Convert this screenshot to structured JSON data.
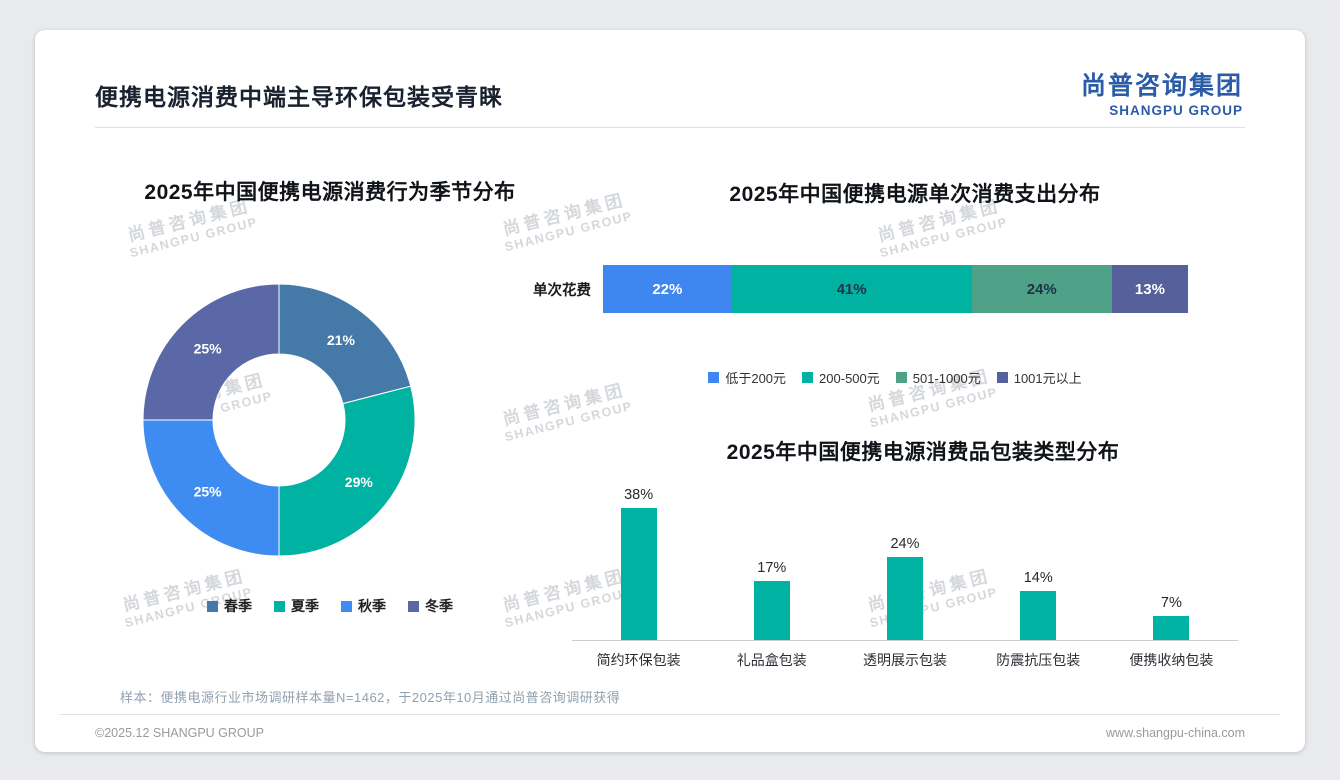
{
  "header": {
    "title": "便携电源消费中端主导环保包装受青睐",
    "logo_cn": "尚普咨询集团",
    "logo_en": "SHANGPU GROUP"
  },
  "watermark": {
    "cn": "尚普咨询集团",
    "en": "SHANGPU GROUP"
  },
  "footnote": "样本：便携电源行业市场调研样本量N=1462，于2025年10月通过尚普咨询调研获得",
  "footer": {
    "left": "©2025.12 SHANGPU GROUP",
    "right": "www.shangpu-china.com"
  },
  "chart_data": [
    {
      "id": "season-donut",
      "type": "pie",
      "subtype": "donut",
      "title": "2025年中国便携电源消费行为季节分布",
      "categories": [
        "春季",
        "夏季",
        "秋季",
        "冬季"
      ],
      "values": [
        21,
        29,
        25,
        25
      ],
      "unit": "%",
      "colors": [
        "#4579a8",
        "#00b2a2",
        "#3e8cf2",
        "#5a68a8"
      ],
      "legend_position": "bottom",
      "start_angle_deg": -90,
      "direction": "clockwise"
    },
    {
      "id": "spend-stacked-bar",
      "type": "bar",
      "subtype": "stacked-horizontal",
      "title": "2025年中国便携电源单次消费支出分布",
      "row_label": "单次花费",
      "categories": [
        "低于200元",
        "200-500元",
        "501-1000元",
        "1001元以上"
      ],
      "values": [
        22,
        41,
        24,
        13
      ],
      "unit": "%",
      "colors": [
        "#3e86f0",
        "#00b2a2",
        "#4fa188",
        "#56619c"
      ],
      "value_label_colors": [
        "#ffffff",
        "#1e3345",
        "#1e3345",
        "#ffffff"
      ],
      "legend_position": "bottom"
    },
    {
      "id": "packaging-bar",
      "type": "bar",
      "subtype": "vertical",
      "title": "2025年中国便携电源消费品包装类型分布",
      "categories": [
        "简约环保包装",
        "礼品盒包装",
        "透明展示包装",
        "防震抗压包装",
        "便携收纳包装"
      ],
      "values": [
        38,
        17,
        24,
        14,
        7
      ],
      "unit": "%",
      "bar_color": "#00b2a2",
      "ylim": [
        0,
        45
      ],
      "grid": false
    }
  ]
}
